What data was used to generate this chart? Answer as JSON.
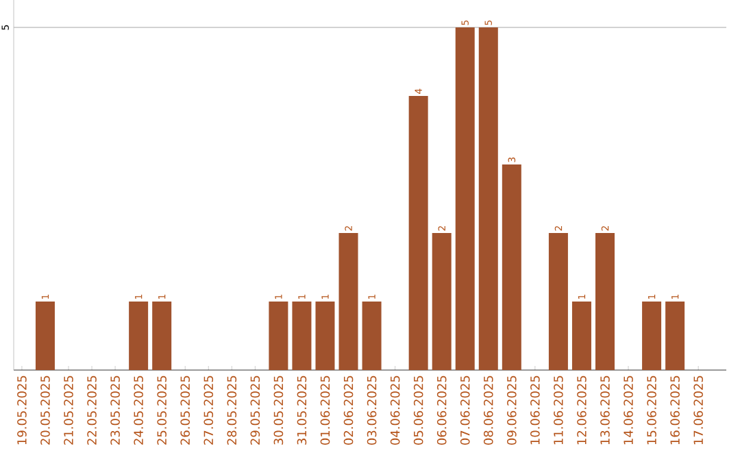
{
  "chart_data": {
    "type": "bar",
    "categories": [
      "19.05.2025",
      "20.05.2025",
      "21.05.2025",
      "22.05.2025",
      "23.05.2025",
      "24.05.2025",
      "25.05.2025",
      "26.05.2025",
      "27.05.2025",
      "28.05.2025",
      "29.05.2025",
      "30.05.2025",
      "31.05.2025",
      "01.06.2025",
      "02.06.2025",
      "03.06.2025",
      "04.06.2025",
      "05.06.2025",
      "06.06.2025",
      "07.06.2025",
      "08.06.2025",
      "09.06.2025",
      "10.06.2025",
      "11.06.2025",
      "12.06.2025",
      "13.06.2025",
      "14.06.2025",
      "15.06.2025",
      "16.06.2025",
      "17.06.2025"
    ],
    "values": [
      0,
      1,
      0,
      0,
      0,
      1,
      1,
      0,
      0,
      0,
      0,
      1,
      1,
      1,
      2,
      1,
      0,
      4,
      2,
      5,
      5,
      3,
      0,
      2,
      1,
      2,
      0,
      1,
      1,
      0
    ],
    "value_labels": [
      null,
      "1",
      null,
      null,
      null,
      "1",
      "1",
      null,
      null,
      null,
      null,
      "1",
      "1",
      "1",
      "2",
      "1",
      null,
      "4",
      "2",
      "5",
      "5",
      "3",
      null,
      "2",
      "1",
      "2",
      null,
      "1",
      "1",
      null
    ],
    "color": "#a0522d",
    "ylim": [
      0,
      5.4
    ],
    "yticks": [
      5
    ],
    "grid": "y"
  }
}
